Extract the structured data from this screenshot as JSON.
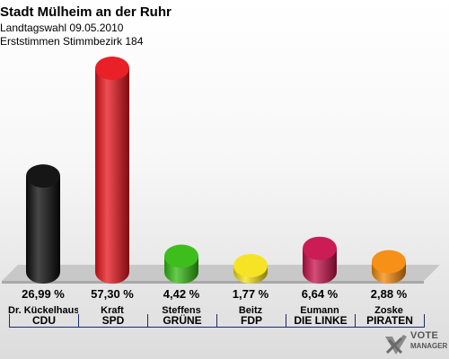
{
  "title": "Stadt Mülheim an der Ruhr",
  "subtitle1": "Landtagswahl 09.05.2010",
  "subtitle2": "Erststimmen Stimmbezirk 184",
  "logo": {
    "line1": "VOTE",
    "line2": "MANAGER"
  },
  "chart_data": {
    "type": "bar",
    "title": "Stadt Mülheim an der Ruhr",
    "categories": [
      "CDU",
      "SPD",
      "GRÜNE",
      "FDP",
      "DIE LINKE",
      "PIRATEN"
    ],
    "candidates": [
      "Dr. Kückelhaus",
      "Kraft",
      "Steffens",
      "Beitz",
      "Eumann",
      "Zoske"
    ],
    "values": [
      26.99,
      57.3,
      4.42,
      1.77,
      6.64,
      2.88
    ],
    "labels": [
      "26,99 %",
      "57,30 %",
      "4,42 %",
      "1,77 %",
      "6,64 %",
      "2,88 %"
    ],
    "colors": [
      "#0a0a0a",
      "#e8141c",
      "#33bb11",
      "#f5e21a",
      "#c8104c",
      "#f58a0a"
    ],
    "ylim": [
      0,
      57.3
    ],
    "grid": false,
    "legend": "none"
  }
}
